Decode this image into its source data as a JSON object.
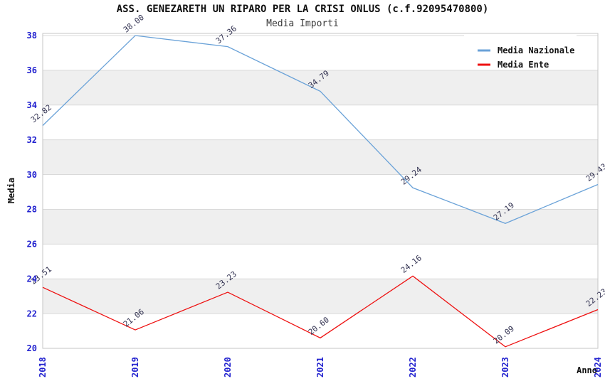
{
  "chart_data": {
    "type": "line",
    "title": "ASS. GENEZARETH UN RIPARO PER LA CRISI ONLUS (c.f.92095470800)",
    "subtitle": "Media Importi",
    "xlabel": "Anno",
    "ylabel": "Media",
    "categories": [
      "2018",
      "2019",
      "2020",
      "2021",
      "2022",
      "2023",
      "2024"
    ],
    "series": [
      {
        "name": "Media Nazionale",
        "color": "#6aa2d8",
        "values": [
          32.82,
          38.0,
          37.36,
          34.79,
          29.24,
          27.19,
          29.43
        ]
      },
      {
        "name": "Media Ente",
        "color": "#ee1111",
        "values": [
          23.51,
          21.06,
          23.23,
          20.6,
          24.16,
          20.09,
          22.23
        ]
      }
    ],
    "ylim": [
      20,
      38
    ],
    "ytick_step": 2,
    "grid": "horizontal",
    "band_shading": "alternating-2unit",
    "legend_position": "top-right",
    "point_labels_decimals": 2
  },
  "style": {
    "band_color": "#efefef",
    "grid_color": "#d9d9d9",
    "plot_border_color": "#c6c6c6",
    "tick_label_color": "#2222cf",
    "point_label_color": "#333352",
    "axis_title_color": "#111111",
    "legend_bg_color": "#ffffff",
    "legend_text_color": "#111111",
    "background_color": "#ffffff"
  }
}
